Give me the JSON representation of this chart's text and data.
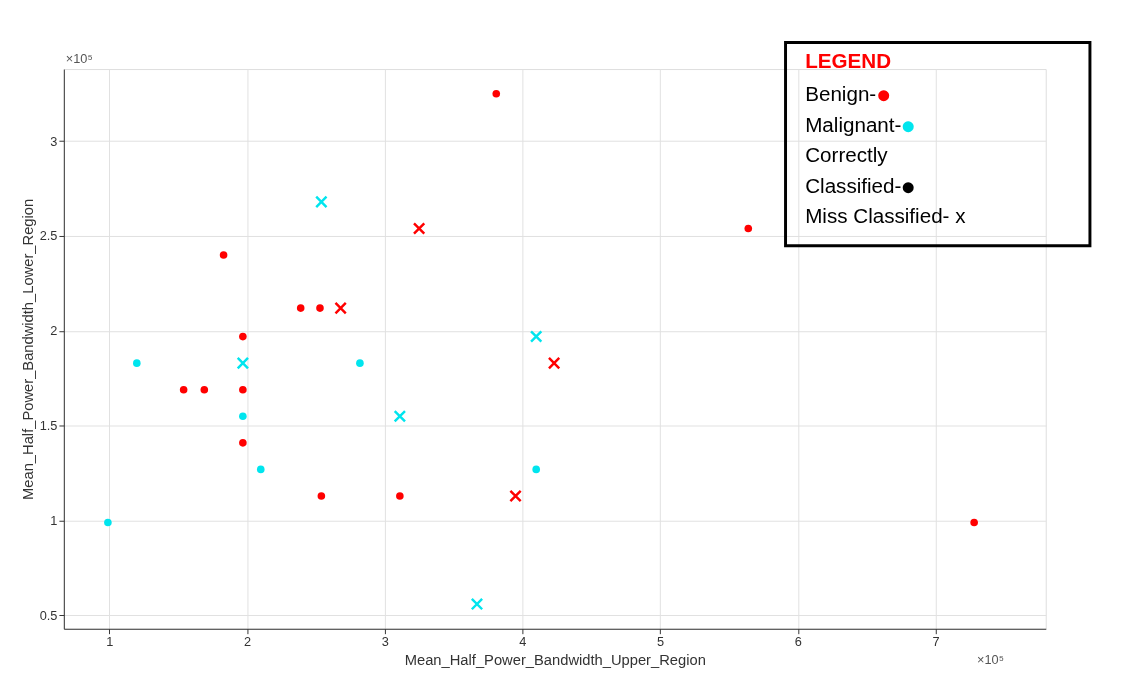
{
  "chart_data": {
    "type": "scatter",
    "xlabel": "Mean_Half_Power_Bandwidth_Upper_Region",
    "ylabel": "Mean_Half_Power_Bandwidth_Lower_Region",
    "legend_title": "LEGEND",
    "annotations": [
      "Benign-●",
      "Malignant-●",
      "Correctly",
      "Classified-●",
      "Miss Classified- x",
      "×10⁵",
      "×10⁵"
    ],
    "xlim": [
      0.67,
      7.8
    ],
    "ylim": [
      0.43,
      3.38
    ],
    "xticks": [
      1,
      2,
      3,
      4,
      5,
      6,
      7
    ],
    "yticks": [
      0.5,
      1,
      1.5,
      2,
      2.5,
      3
    ],
    "grid": true,
    "series": [
      {
        "color": "#ff0000",
        "marker": "circle",
        "x": [
          3.81,
          5.64,
          1.83,
          2.39,
          2.53,
          1.97,
          1.54,
          1.69,
          1.97,
          1.97,
          2.54,
          3.11,
          7.28
        ],
        "values": [
          3.25,
          2.54,
          2.4,
          2.12,
          2.12,
          1.97,
          1.69,
          1.69,
          1.69,
          1.41,
          1.13,
          1.13,
          0.99
        ]
      },
      {
        "color": "#ff0000",
        "marker": "cross",
        "x": [
          3.25,
          2.68,
          4.23,
          3.95
        ],
        "values": [
          2.54,
          2.12,
          1.83,
          1.13
        ]
      },
      {
        "color": "#00e5ee",
        "marker": "circle",
        "x": [
          1.2,
          2.82,
          1.97,
          2.1,
          4.1,
          0.99
        ],
        "values": [
          1.83,
          1.83,
          1.55,
          1.27,
          1.27,
          0.99
        ]
      },
      {
        "color": "#00e5ee",
        "marker": "cross",
        "x": [
          2.54,
          1.97,
          4.1,
          3.11,
          3.67
        ],
        "values": [
          2.68,
          1.83,
          1.97,
          1.55,
          0.56
        ]
      }
    ]
  }
}
